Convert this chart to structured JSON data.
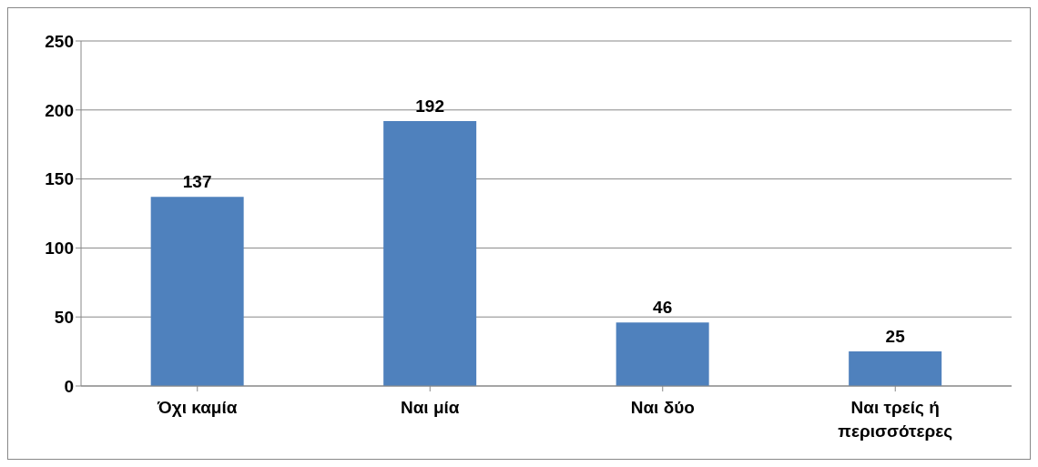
{
  "chart_data": {
    "type": "bar",
    "categories": [
      "Όχι καμία",
      "Ναι μία",
      "Ναι δύο",
      "Ναι τρείς ή περισσότερες"
    ],
    "values": [
      137,
      192,
      46,
      25
    ],
    "color": "#4f81bd",
    "ylim": [
      0,
      250
    ],
    "yticks": [
      0,
      50,
      100,
      150,
      200,
      250
    ],
    "grid": "y",
    "data_labels": true
  }
}
